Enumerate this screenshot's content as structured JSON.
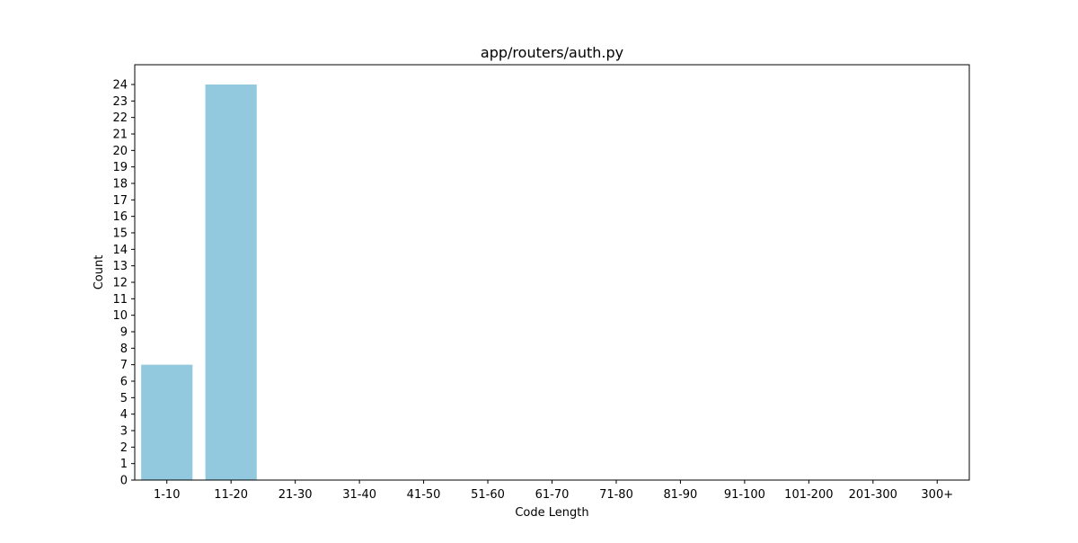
{
  "chart_data": {
    "type": "bar",
    "title": "app/routers/auth.py",
    "xlabel": "Code Length",
    "ylabel": "Count",
    "categories": [
      "1-10",
      "11-20",
      "21-30",
      "31-40",
      "41-50",
      "51-60",
      "61-70",
      "71-80",
      "81-90",
      "91-100",
      "101-200",
      "201-300",
      "300+"
    ],
    "values": [
      7,
      24,
      0,
      0,
      0,
      0,
      0,
      0,
      0,
      0,
      0,
      0,
      0
    ],
    "ylim": [
      0,
      25.2
    ],
    "yticks": [
      0,
      1,
      2,
      3,
      4,
      5,
      6,
      7,
      8,
      9,
      10,
      11,
      12,
      13,
      14,
      15,
      16,
      17,
      18,
      19,
      20,
      21,
      22,
      23,
      24
    ],
    "bar_color": "#92c9df",
    "grid": false,
    "legend": "none"
  }
}
